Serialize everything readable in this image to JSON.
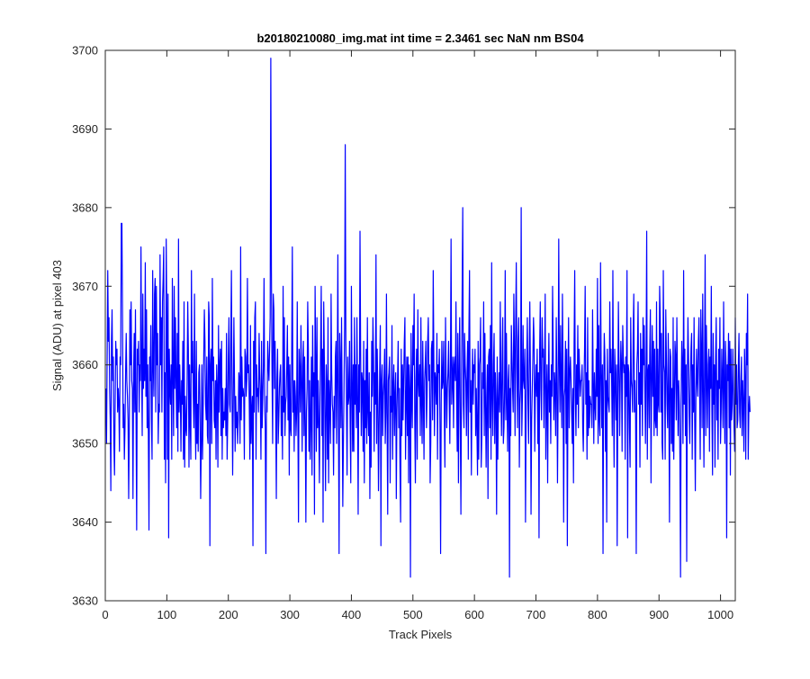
{
  "chart_data": {
    "type": "line",
    "title": "b20180210080_img.mat int time = 2.3461 sec  NaN nm BS04",
    "xlabel": "Track Pixels",
    "ylabel": "Signal (ADU) at pixel 403",
    "xlim": [
      0,
      1024
    ],
    "ylim": [
      3630,
      3700
    ],
    "xticks": [
      0,
      100,
      200,
      300,
      400,
      500,
      600,
      700,
      800,
      900,
      1000
    ],
    "yticks": [
      3630,
      3640,
      3650,
      3660,
      3670,
      3680,
      3690,
      3700
    ],
    "grid": false,
    "legend": "none",
    "line_color": "#0000ff",
    "series": [
      {
        "x_start": 1,
        "x_step": 1,
        "values": [
          3657,
          3650,
          3661,
          3672,
          3663,
          3666,
          3657,
          3653,
          3644,
          3663,
          3667,
          3658,
          3661,
          3650,
          3646,
          3655,
          3663,
          3660,
          3662,
          3654,
          3657,
          3655,
          3649,
          3661,
          3660,
          3678,
          3678,
          3666,
          3652,
          3655,
          3648,
          3652,
          3659,
          3664,
          3658,
          3656,
          3653,
          3643,
          3652,
          3667,
          3660,
          3668,
          3658,
          3657,
          3643,
          3659,
          3664,
          3654,
          3667,
          3653,
          3639,
          3662,
          3660,
          3663,
          3654,
          3660,
          3658,
          3675,
          3660,
          3651,
          3669,
          3657,
          3662,
          3658,
          3673,
          3656,
          3667,
          3652,
          3660,
          3651,
          3639,
          3661,
          3658,
          3665,
          3653,
          3648,
          3672,
          3660,
          3656,
          3669,
          3671,
          3654,
          3670,
          3660,
          3664,
          3650,
          3655,
          3654,
          3674,
          3660,
          3666,
          3654,
          3668,
          3671,
          3675,
          3648,
          3659,
          3645,
          3676,
          3666,
          3648,
          3669,
          3638,
          3662,
          3657,
          3655,
          3660,
          3648,
          3671,
          3659,
          3651,
          3670,
          3657,
          3666,
          3658,
          3652,
          3664,
          3649,
          3676,
          3654,
          3660,
          3656,
          3649,
          3658,
          3655,
          3663,
          3648,
          3668,
          3647,
          3656,
          3652,
          3651,
          3658,
          3668,
          3662,
          3647,
          3660,
          3653,
          3648,
          3672,
          3659,
          3663,
          3656,
          3652,
          3669,
          3655,
          3648,
          3663,
          3650,
          3655,
          3649,
          3659,
          3660,
          3653,
          3643,
          3650,
          3660,
          3648,
          3654,
          3661,
          3667,
          3663,
          3655,
          3653,
          3661,
          3651,
          3650,
          3668,
          3666,
          3637,
          3660,
          3662,
          3650,
          3671,
          3658,
          3661,
          3653,
          3652,
          3658,
          3648,
          3660,
          3657,
          3647,
          3665,
          3654,
          3660,
          3662,
          3651,
          3663,
          3648,
          3657,
          3652,
          3654,
          3653,
          3657,
          3651,
          3664,
          3648,
          3653,
          3661,
          3666,
          3655,
          3654,
          3663,
          3672,
          3657,
          3646,
          3655,
          3666,
          3658,
          3649,
          3656,
          3652,
          3654,
          3650,
          3653,
          3659,
          3658,
          3650,
          3675,
          3653,
          3661,
          3656,
          3657,
          3656,
          3648,
          3662,
          3661,
          3656,
          3658,
          3671,
          3659,
          3660,
          3655,
          3648,
          3665,
          3650,
          3654,
          3656,
          3637,
          3663,
          3654,
          3666,
          3668,
          3648,
          3660,
          3656,
          3657,
          3654,
          3664,
          3659,
          3656,
          3648,
          3663,
          3652,
          3656,
          3660,
          3671,
          3656,
          3652,
          3636,
          3656,
          3654,
          3663,
          3660,
          3658,
          3662,
          3666,
          3699,
          3672,
          3659,
          3650,
          3669,
          3667,
          3657,
          3663,
          3654,
          3643,
          3658,
          3662,
          3650,
          3653,
          3657,
          3659,
          3660,
          3651,
          3656,
          3648,
          3670,
          3654,
          3666,
          3651,
          3655,
          3656,
          3660,
          3665,
          3653,
          3661,
          3646,
          3660,
          3652,
          3651,
          3662,
          3675,
          3654,
          3658,
          3649,
          3658,
          3656,
          3651,
          3654,
          3668,
          3653,
          3640,
          3662,
          3659,
          3654,
          3665,
          3658,
          3649,
          3660,
          3663,
          3651,
          3661,
          3653,
          3640,
          3654,
          3657,
          3668,
          3662,
          3649,
          3658,
          3648,
          3653,
          3661,
          3646,
          3665,
          3656,
          3659,
          3641,
          3670,
          3660,
          3649,
          3666,
          3652,
          3658,
          3652,
          3645,
          3656,
          3662,
          3670,
          3651,
          3662,
          3640,
          3668,
          3661,
          3652,
          3644,
          3660,
          3657,
          3648,
          3666,
          3645,
          3658,
          3655,
          3650,
          3669,
          3659,
          3655,
          3654,
          3646,
          3656,
          3652,
          3661,
          3663,
          3650,
          3658,
          3674,
          3653,
          3636,
          3664,
          3660,
          3652,
          3666,
          3655,
          3642,
          3650,
          3657,
          3665,
          3688,
          3663,
          3655,
          3646,
          3661,
          3655,
          3656,
          3663,
          3652,
          3645,
          3670,
          3658,
          3649,
          3660,
          3649,
          3666,
          3655,
          3660,
          3652,
          3666,
          3656,
          3641,
          3660,
          3654,
          3677,
          3662,
          3651,
          3659,
          3658,
          3649,
          3663,
          3645,
          3658,
          3652,
          3662,
          3650,
          3666,
          3654,
          3651,
          3659,
          3643,
          3654,
          3647,
          3663,
          3656,
          3666,
          3661,
          3649,
          3659,
          3655,
          3674,
          3650,
          3662,
          3656,
          3644,
          3652,
          3659,
          3665,
          3637,
          3658,
          3660,
          3651,
          3656,
          3658,
          3662,
          3650,
          3654,
          3669,
          3653,
          3641,
          3658,
          3659,
          3661,
          3645,
          3656,
          3654,
          3665,
          3648,
          3657,
          3660,
          3651,
          3656,
          3659,
          3643,
          3654,
          3658,
          3663,
          3652,
          3657,
          3647,
          3640,
          3662,
          3651,
          3660,
          3653,
          3658,
          3663,
          3666,
          3648,
          3655,
          3661,
          3651,
          3661,
          3645,
          3660,
          3657,
          3633,
          3664,
          3656,
          3652,
          3665,
          3660,
          3669,
          3653,
          3645,
          3658,
          3662,
          3648,
          3667,
          3658,
          3656,
          3660,
          3651,
          3666,
          3655,
          3650,
          3663,
          3656,
          3648,
          3658,
          3660,
          3663,
          3652,
          3656,
          3663,
          3666,
          3658,
          3660,
          3645,
          3650,
          3662,
          3663,
          3653,
          3672,
          3661,
          3651,
          3659,
          3658,
          3655,
          3664,
          3648,
          3660,
          3659,
          3662,
          3652,
          3636,
          3655,
          3663,
          3657,
          3658,
          3663,
          3654,
          3647,
          3666,
          3658,
          3652,
          3657,
          3659,
          3663,
          3656,
          3650,
          3660,
          3676,
          3655,
          3658,
          3661,
          3652,
          3660,
          3661,
          3658,
          3668,
          3656,
          3649,
          3664,
          3645,
          3659,
          3666,
          3653,
          3641,
          3658,
          3669,
          3680,
          3655,
          3652,
          3664,
          3660,
          3658,
          3651,
          3659,
          3663,
          3648,
          3664,
          3672,
          3654,
          3658,
          3646,
          3657,
          3662,
          3655,
          3660,
          3659,
          3662,
          3651,
          3657,
          3652,
          3646,
          3663,
          3648,
          3660,
          3661,
          3666,
          3647,
          3651,
          3659,
          3657,
          3668,
          3651,
          3664,
          3655,
          3647,
          3656,
          3660,
          3643,
          3661,
          3662,
          3652,
          3665,
          3648,
          3673,
          3656,
          3651,
          3660,
          3664,
          3650,
          3659,
          3655,
          3641,
          3661,
          3648,
          3655,
          3659,
          3654,
          3668,
          3657,
          3651,
          3660,
          3666,
          3650,
          3652,
          3657,
          3672,
          3653,
          3664,
          3655,
          3649,
          3658,
          3660,
          3633,
          3657,
          3651,
          3665,
          3661,
          3657,
          3654,
          3669,
          3662,
          3651,
          3665,
          3673,
          3659,
          3652,
          3663,
          3666,
          3647,
          3655,
          3657,
          3680,
          3651,
          3656,
          3665,
          3658,
          3657,
          3662,
          3640,
          3654,
          3660,
          3666,
          3655,
          3650,
          3660,
          3668,
          3659,
          3641,
          3653,
          3657,
          3661,
          3666,
          3663,
          3649,
          3657,
          3660,
          3656,
          3662,
          3650,
          3659,
          3638,
          3662,
          3668,
          3657,
          3653,
          3666,
          3661,
          3662,
          3652,
          3659,
          3669,
          3648,
          3656,
          3660,
          3645,
          3657,
          3664,
          3654,
          3658,
          3650,
          3660,
          3656,
          3670,
          3662,
          3653,
          3659,
          3657,
          3651,
          3666,
          3658,
          3645,
          3656,
          3676,
          3660,
          3654,
          3665,
          3658,
          3652,
          3669,
          3660,
          3640,
          3656,
          3657,
          3663,
          3650,
          3662,
          3637,
          3657,
          3666,
          3652,
          3659,
          3661,
          3658,
          3654,
          3650,
          3657,
          3645,
          3663,
          3672,
          3656,
          3651,
          3660,
          3655,
          3665,
          3652,
          3662,
          3659,
          3656,
          3658,
          3658,
          3660,
          3652,
          3649,
          3657,
          3662,
          3670,
          3655,
          3659,
          3648,
          3666,
          3651,
          3658,
          3652,
          3656,
          3655,
          3655,
          3652,
          3667,
          3658,
          3650,
          3659,
          3655,
          3653,
          3662,
          3656,
          3671,
          3650,
          3665,
          3653,
          3651,
          3673,
          3659,
          3652,
          3660,
          3636,
          3657,
          3664,
          3661,
          3649,
          3658,
          3640,
          3662,
          3656,
          3655,
          3654,
          3668,
          3659,
          3662,
          3658,
          3651,
          3672,
          3656,
          3647,
          3662,
          3659,
          3653,
          3660,
          3637,
          3655,
          3668,
          3660,
          3651,
          3658,
          3663,
          3660,
          3649,
          3665,
          3661,
          3659,
          3660,
          3648,
          3661,
          3656,
          3672,
          3638,
          3660,
          3659,
          3652,
          3647,
          3666,
          3658,
          3657,
          3654,
          3664,
          3669,
          3654,
          3658,
          3653,
          3636,
          3660,
          3662,
          3668,
          3655,
          3659,
          3647,
          3664,
          3655,
          3662,
          3651,
          3666,
          3660,
          3665,
          3657,
          3650,
          3660,
          3677,
          3648,
          3659,
          3660,
          3652,
          3662,
          3667,
          3645,
          3658,
          3665,
          3656,
          3663,
          3651,
          3662,
          3653,
          3652,
          3668,
          3651,
          3662,
          3655,
          3654,
          3670,
          3666,
          3654,
          3664,
          3650,
          3648,
          3672,
          3660,
          3659,
          3648,
          3667,
          3661,
          3655,
          3652,
          3664,
          3656,
          3640,
          3662,
          3661,
          3650,
          3657,
          3649,
          3666,
          3648,
          3655,
          3663,
          3661,
          3653,
          3666,
          3658,
          3651,
          3658,
          3655,
          3648,
          3633,
          3656,
          3663,
          3660,
          3650,
          3672,
          3655,
          3662,
          3651,
          3660,
          3635,
          3657,
          3666,
          3661,
          3654,
          3650,
          3658,
          3662,
          3664,
          3648,
          3660,
          3654,
          3666,
          3653,
          3644,
          3656,
          3662,
          3658,
          3656,
          3663,
          3666,
          3657,
          3648,
          3667,
          3662,
          3652,
          3669,
          3657,
          3647,
          3660,
          3674,
          3651,
          3665,
          3658,
          3652,
          3660,
          3662,
          3649,
          3661,
          3657,
          3670,
          3654,
          3646,
          3664,
          3655,
          3660,
          3647,
          3661,
          3666,
          3653,
          3658,
          3648,
          3662,
          3657,
          3666,
          3650,
          3654,
          3662,
          3658,
          3652,
          3668,
          3657,
          3650,
          3663,
          3660,
          3638,
          3660,
          3658,
          3664,
          3652,
          3663,
          3646,
          3662,
          3653,
          3655,
          3662,
          3657,
          3652,
          3649,
          3666,
          3655,
          3660,
          3652,
          3653,
          3660,
          3664,
          3654,
          3652,
          3658,
          3661,
          3651,
          3658,
          3655,
          3649,
          3662,
          3658,
          3648,
          3664,
          3660,
          3669,
          3648,
          3654,
          3656,
          3654
        ]
      }
    ]
  }
}
